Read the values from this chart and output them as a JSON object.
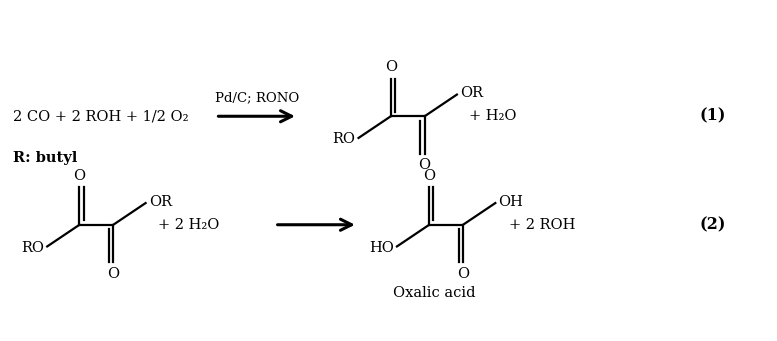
{
  "bg_color": "#ffffff",
  "text_color": "#000000",
  "figsize": [
    7.77,
    3.41
  ],
  "dpi": 100,
  "reaction1": {
    "reactants": "2 CO + 2 ROH + 1/2 O₂",
    "catalyst": "Pd/C; RONO",
    "product_water": "+ H₂O",
    "label": "(1)",
    "R_note": "R: butyl"
  },
  "reaction2": {
    "reagent": "+ 2 H₂O",
    "product_right": "+ 2 ROH",
    "label": "(2)",
    "product_name": "Oxalic acid"
  }
}
